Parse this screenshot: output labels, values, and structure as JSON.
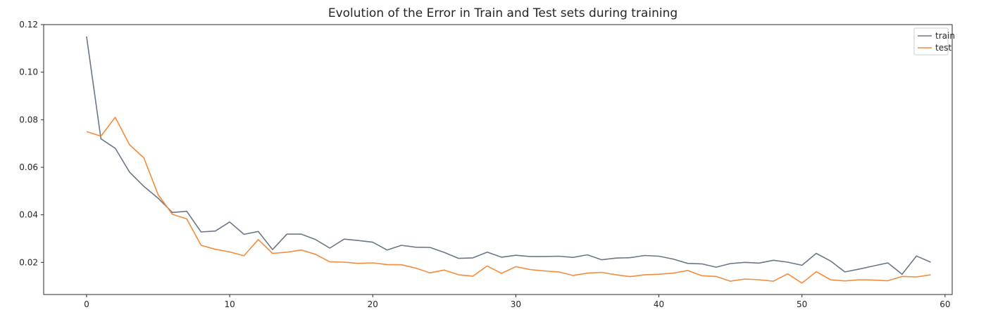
{
  "chart_data": {
    "type": "line",
    "title": "Evolution of the Error in Train and Test sets during training",
    "xlabel": "",
    "ylabel": "",
    "xlim": [
      -3,
      60.5
    ],
    "ylim": [
      0.0065,
      0.12
    ],
    "xticks": [
      0,
      10,
      20,
      30,
      40,
      50,
      60
    ],
    "yticks": [
      0.02,
      0.04,
      0.06,
      0.08,
      0.1,
      0.12
    ],
    "ytick_labels": [
      "0.02",
      "0.04",
      "0.06",
      "0.08",
      "0.10",
      "0.12"
    ],
    "grid": false,
    "legend_position": "top-right",
    "series": [
      {
        "name": "train",
        "color": "#6b7787",
        "x": [
          0,
          1,
          2,
          3,
          4,
          5,
          6,
          7,
          8,
          9,
          10,
          11,
          12,
          13,
          14,
          15,
          16,
          17,
          18,
          19,
          20,
          21,
          22,
          23,
          24,
          25,
          26,
          27,
          28,
          29,
          30,
          31,
          32,
          33,
          34,
          35,
          36,
          37,
          38,
          39,
          40,
          41,
          42,
          43,
          44,
          45,
          46,
          47,
          48,
          49,
          50,
          51,
          52,
          53,
          54,
          55,
          56,
          57,
          58,
          59
        ],
        "values": [
          0.115,
          0.072,
          0.068,
          0.058,
          0.052,
          0.047,
          0.041,
          0.0415,
          0.0328,
          0.0332,
          0.037,
          0.0318,
          0.033,
          0.0254,
          0.0319,
          0.0319,
          0.0296,
          0.026,
          0.0298,
          0.0292,
          0.0285,
          0.0252,
          0.0272,
          0.0264,
          0.0263,
          0.0242,
          0.0217,
          0.0219,
          0.0243,
          0.0222,
          0.023,
          0.0225,
          0.0225,
          0.0226,
          0.0221,
          0.0232,
          0.0211,
          0.0218,
          0.022,
          0.0229,
          0.0226,
          0.0214,
          0.0196,
          0.0194,
          0.018,
          0.0195,
          0.02,
          0.0197,
          0.0209,
          0.0201,
          0.0188,
          0.0238,
          0.0206,
          0.016,
          0.0172,
          0.0185,
          0.0198,
          0.015,
          0.0227,
          0.0201
        ]
      },
      {
        "name": "test",
        "color": "#f28c3d",
        "x": [
          0,
          1,
          2,
          3,
          4,
          5,
          6,
          7,
          8,
          9,
          10,
          11,
          12,
          13,
          14,
          15,
          16,
          17,
          18,
          19,
          20,
          21,
          22,
          23,
          24,
          25,
          26,
          27,
          28,
          29,
          30,
          31,
          32,
          33,
          34,
          35,
          36,
          37,
          38,
          39,
          40,
          41,
          42,
          43,
          44,
          45,
          46,
          47,
          48,
          49,
          50,
          51,
          52,
          53,
          54,
          55,
          56,
          57,
          58,
          59
        ],
        "values": [
          0.075,
          0.0731,
          0.081,
          0.0695,
          0.064,
          0.0485,
          0.0402,
          0.0383,
          0.0272,
          0.0255,
          0.0244,
          0.0228,
          0.0296,
          0.0238,
          0.0243,
          0.0252,
          0.0234,
          0.0202,
          0.0201,
          0.0196,
          0.0198,
          0.0191,
          0.019,
          0.0176,
          0.0156,
          0.0168,
          0.0148,
          0.0142,
          0.0185,
          0.0154,
          0.0182,
          0.017,
          0.0164,
          0.016,
          0.0145,
          0.0155,
          0.0158,
          0.0148,
          0.014,
          0.0148,
          0.015,
          0.0155,
          0.0166,
          0.0144,
          0.0141,
          0.0121,
          0.013,
          0.0127,
          0.0121,
          0.0152,
          0.0113,
          0.0161,
          0.0127,
          0.0122,
          0.0127,
          0.0126,
          0.0123,
          0.0141,
          0.0139,
          0.0148
        ]
      }
    ]
  }
}
